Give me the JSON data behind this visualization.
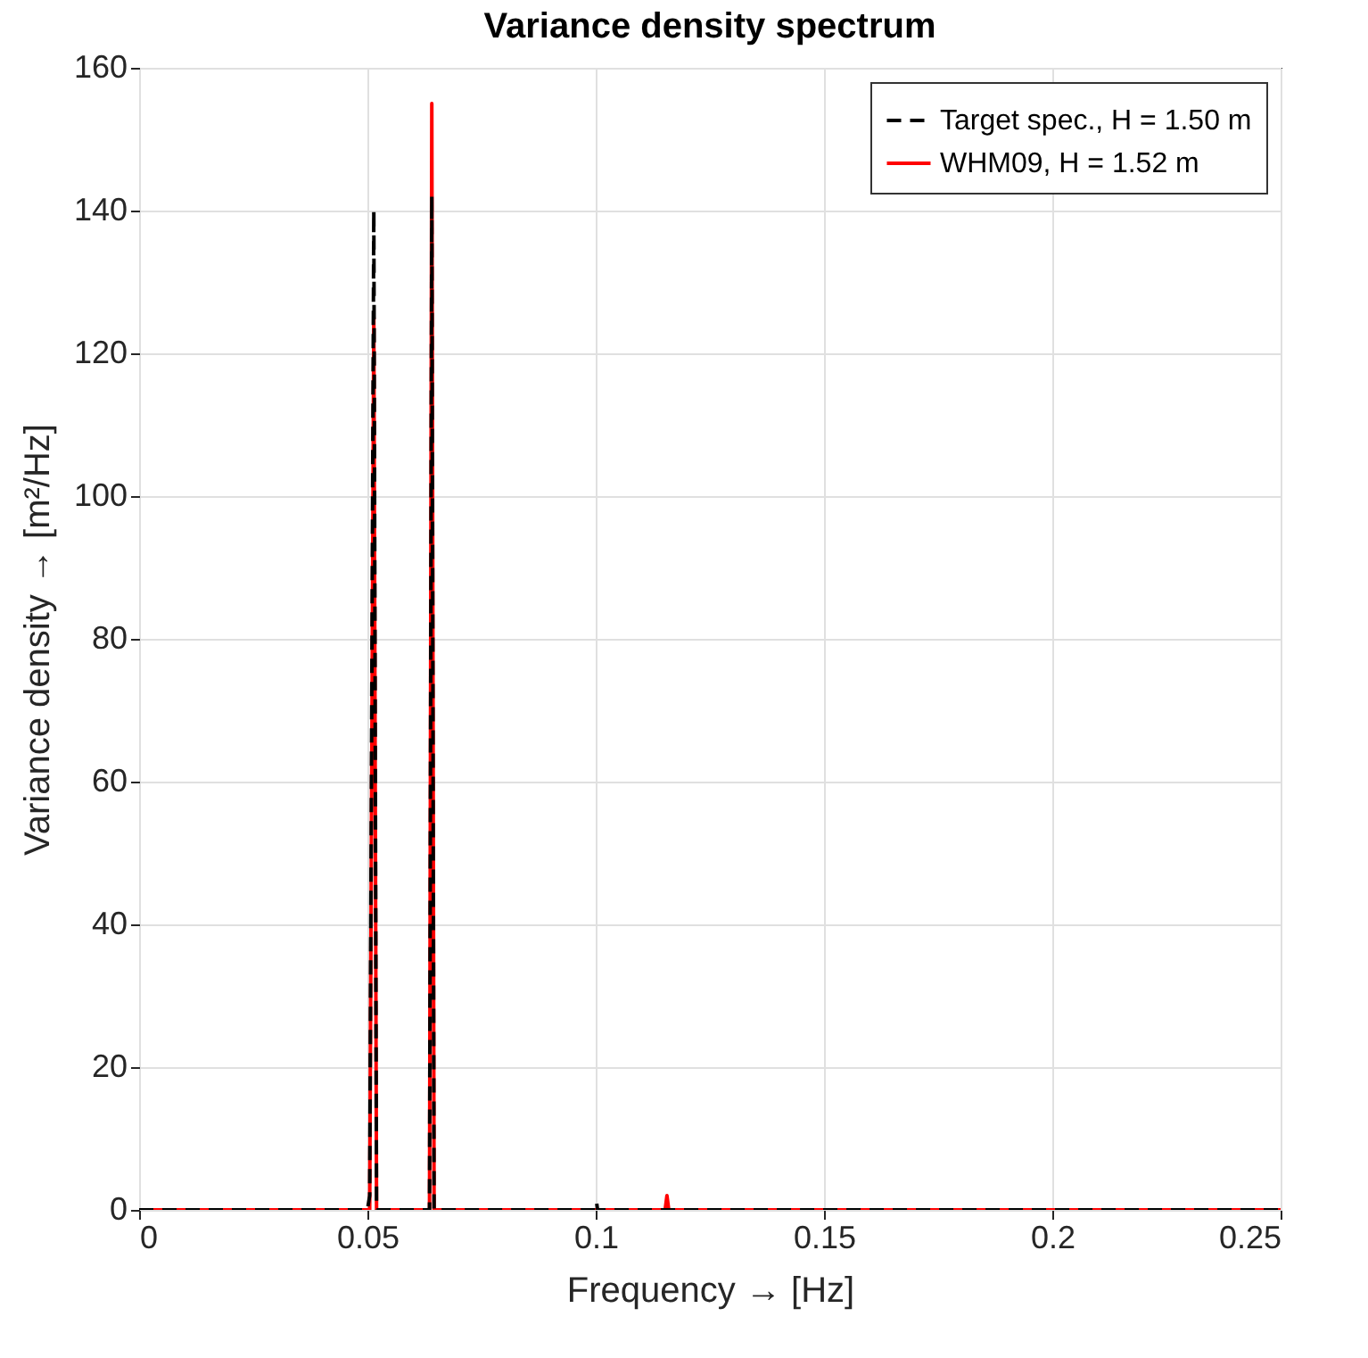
{
  "chart_data": {
    "type": "line",
    "title": "Variance density spectrum",
    "xlabel": "Frequency → [Hz]",
    "ylabel": "Variance density → [m²/Hz]",
    "xlim": [
      0,
      0.25
    ],
    "xticks": [
      0,
      0.05,
      0.1,
      0.15,
      0.2,
      0.25
    ],
    "ylim": [
      0,
      160
    ],
    "yticks": [
      0,
      20,
      40,
      60,
      80,
      100,
      120,
      140,
      160
    ],
    "grid": true,
    "legend": "top right",
    "marker": "none",
    "series": [
      {
        "name": "Target spec., H = 1.50 m",
        "color": "#000000",
        "line_style": "dashed",
        "x": [
          0,
          0.05,
          0.0505,
          0.0514,
          0.052,
          0.0636,
          0.0641,
          0.0646,
          0.1,
          0.1002,
          0.1004,
          0.25
        ],
        "values": [
          0,
          0,
          2,
          140,
          0,
          0,
          142,
          0,
          0,
          1,
          0,
          0
        ]
      },
      {
        "name": "WHM09, H = 1.52 m",
        "color": "#ff0000",
        "line_style": "solid",
        "x": [
          0,
          0.0505,
          0.0514,
          0.052,
          0.0636,
          0.0641,
          0.0646,
          0.1152,
          0.1156,
          0.116,
          0.25
        ],
        "values": [
          0,
          0,
          125,
          0,
          0,
          155,
          0,
          0,
          2,
          0,
          0
        ]
      }
    ]
  }
}
